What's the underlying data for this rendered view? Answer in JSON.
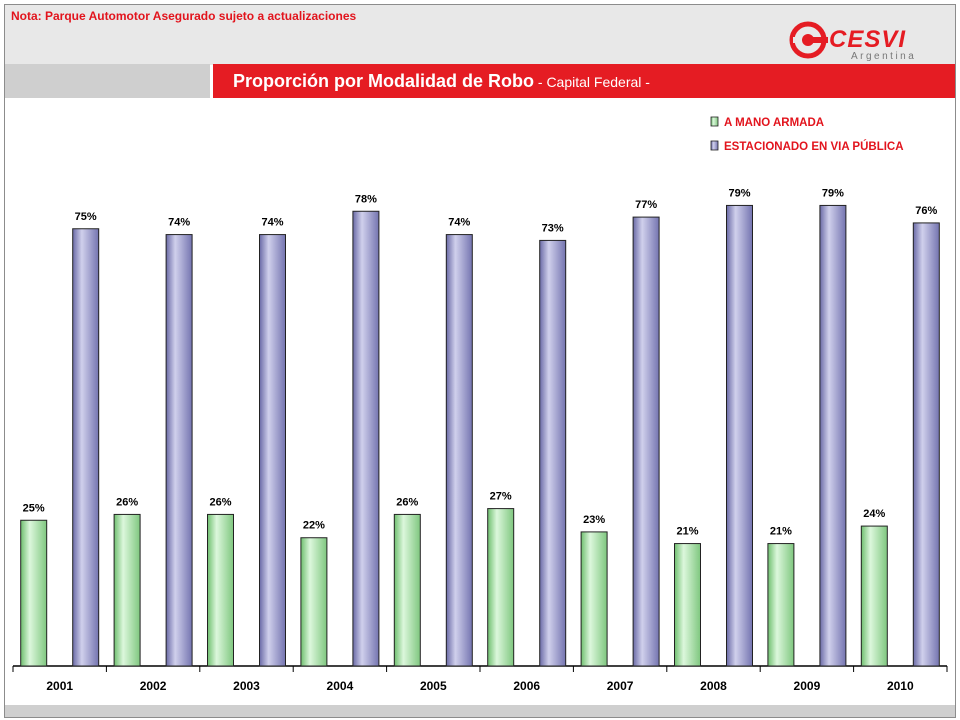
{
  "header": {
    "note": "Nota: Parque Automotor Asegurado sujeto a actualizaciones",
    "logo_text": "CESVI",
    "logo_subtext": "Argentina"
  },
  "title": {
    "main": "Proporción por Modalidad de Robo",
    "sub": " - Capital Federal -"
  },
  "colors": {
    "accent_red": "#e51c23",
    "series_green": "#a8e6a8",
    "series_blue": "#9a9ac8"
  },
  "chart_data": {
    "type": "bar",
    "categories": [
      "2001",
      "2002",
      "2003",
      "2004",
      "2005",
      "2006",
      "2007",
      "2008",
      "2009",
      "2010"
    ],
    "series": [
      {
        "name": "A MANO ARMADA",
        "color": "#a8e6a8",
        "values": [
          25,
          26,
          26,
          22,
          26,
          27,
          23,
          21,
          21,
          24
        ],
        "labels": [
          "25%",
          "26%",
          "26%",
          "22%",
          "26%",
          "27%",
          "23%",
          "21%",
          "21%",
          "24%"
        ]
      },
      {
        "name": "ESTACIONADO EN VIA PÚBLICA",
        "color": "#9a9ac8",
        "values": [
          75,
          74,
          74,
          78,
          74,
          73,
          77,
          79,
          79,
          76
        ],
        "labels": [
          "75%",
          "74%",
          "74%",
          "78%",
          "74%",
          "73%",
          "77%",
          "79%",
          "79%",
          "76%"
        ]
      }
    ],
    "ylim": [
      0,
      100
    ],
    "legend_position": "top-right",
    "grid": false
  }
}
